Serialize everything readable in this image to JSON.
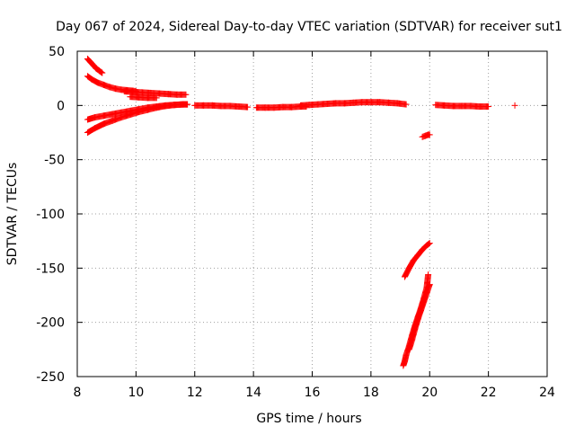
{
  "chart_data": {
    "type": "scatter",
    "title": "Day 067 of 2024, Sidereal Day-to-day VTEC variation (SDTVAR) for receiver sut1",
    "xlabel": "GPS time / hours",
    "ylabel": "SDTVAR / TECUs",
    "xlim": [
      8,
      24
    ],
    "ylim": [
      -250,
      50
    ],
    "x_ticks": [
      "8",
      "10",
      "12",
      "14",
      "16",
      "18",
      "20",
      "22",
      "24"
    ],
    "y_ticks": [
      "50",
      "0",
      "-50",
      "-100",
      "-150",
      "-200",
      "-250"
    ],
    "x_tick_values": [
      8,
      10,
      12,
      14,
      16,
      18,
      20,
      22,
      24
    ],
    "y_tick_values": [
      50,
      0,
      -50,
      -100,
      -150,
      -200,
      -250
    ],
    "grid": true,
    "marker": "plus",
    "point_color": "#ff0000",
    "series": [
      {
        "x": [
          8.35,
          8.45,
          8.55,
          8.65,
          8.75,
          8.85
        ],
        "y": [
          43,
          40,
          37,
          34,
          32,
          30
        ]
      },
      {
        "x": [
          8.35,
          8.5,
          8.7,
          8.9,
          9.1,
          9.3,
          9.5,
          9.7,
          9.9,
          10.0
        ],
        "y": [
          27,
          24,
          21,
          19,
          17,
          15.5,
          14.5,
          14,
          13.5,
          13
        ]
      },
      {
        "x": [
          9.6,
          9.9,
          10.2,
          10.5,
          10.8,
          11.1,
          11.4,
          11.7
        ],
        "y": [
          13,
          12.5,
          12,
          11.5,
          11,
          10.5,
          10,
          10
        ]
      },
      {
        "x": [
          9.8,
          10.1,
          10.4,
          10.7
        ],
        "y": [
          8,
          7.5,
          7,
          7
        ]
      },
      {
        "x": [
          8.35,
          8.6,
          8.9,
          9.2,
          9.5,
          9.8,
          10.1,
          10.4,
          10.7,
          11.0,
          11.3,
          11.6,
          11.75
        ],
        "y": [
          -13,
          -11,
          -9.5,
          -8,
          -6.5,
          -5,
          -3.5,
          -2,
          -1,
          0,
          0.5,
          1,
          1
        ]
      },
      {
        "x": [
          8.35,
          8.6,
          8.9,
          9.2,
          9.5,
          9.8,
          10.1,
          10.4,
          10.7,
          11.0,
          11.3,
          11.6,
          11.75
        ],
        "y": [
          -25,
          -21,
          -17,
          -14,
          -11,
          -8.5,
          -6,
          -4,
          -2,
          -0.5,
          0.5,
          1,
          1
        ]
      },
      {
        "x": [
          12.0,
          12.3,
          12.6,
          12.9,
          13.2,
          13.5,
          13.8
        ],
        "y": [
          0,
          0,
          0,
          -0.5,
          -0.5,
          -1,
          -1.5
        ]
      },
      {
        "x": [
          14.1,
          14.4,
          14.7,
          15.0,
          15.3,
          15.6,
          15.8
        ],
        "y": [
          -2,
          -2,
          -2,
          -1.5,
          -1.5,
          -1,
          -1
        ]
      },
      {
        "x": [
          15.6,
          15.9,
          16.2,
          16.5,
          16.8,
          17.1,
          17.4,
          17.7,
          18.0,
          18.3,
          18.6,
          18.9,
          19.2
        ],
        "y": [
          0,
          0.5,
          1,
          1.5,
          2,
          2,
          2.5,
          3,
          3,
          3,
          2.5,
          2,
          1
        ]
      },
      {
        "x": [
          20.2,
          20.5,
          20.8,
          21.1,
          21.4,
          21.7,
          22.0
        ],
        "y": [
          0.5,
          0,
          -0.5,
          -0.5,
          -0.5,
          -1,
          -1
        ]
      },
      {
        "x": [
          22.9
        ],
        "y": [
          0
        ]
      },
      {
        "x": [
          19.75,
          19.85,
          19.95,
          20.0
        ],
        "y": [
          -29,
          -28,
          -27,
          -27
        ]
      },
      {
        "x": [
          19.15,
          19.3,
          19.45,
          19.6,
          19.75,
          19.9,
          20.0
        ],
        "y": [
          -158,
          -150,
          -143,
          -138,
          -133,
          -129,
          -127
        ]
      },
      {
        "x": [
          19.1,
          19.15,
          19.2,
          19.3,
          19.4,
          19.5,
          19.6,
          19.7,
          19.8,
          19.9,
          19.95
        ],
        "y": [
          -240,
          -236,
          -230,
          -222,
          -212,
          -203,
          -195,
          -187,
          -178,
          -168,
          -156
        ]
      },
      {
        "x": [
          19.3,
          19.4,
          19.5,
          19.6,
          19.7,
          19.8,
          19.9,
          20.0
        ],
        "y": [
          -225,
          -216,
          -206,
          -197,
          -189,
          -181,
          -173,
          -165
        ]
      }
    ]
  }
}
